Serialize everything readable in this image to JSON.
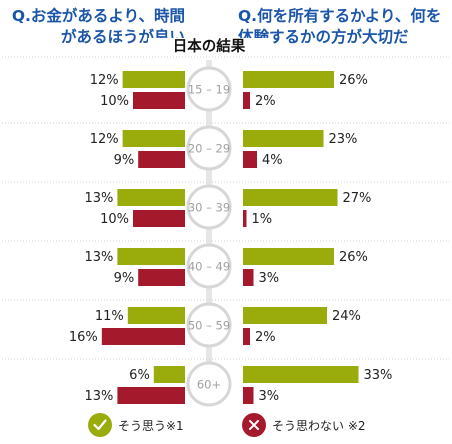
{
  "header": {
    "left_question": "Q.お金があるより、時間\nがあるほうが良い",
    "right_question": "Q.何を所有するかより、何を\n体験するかの方が大切だ",
    "center_title": "日本の結果"
  },
  "legend": {
    "yes_label": "そう思う※1",
    "no_label": "そう思わない ※2"
  },
  "colors": {
    "agree": "#9aab0c",
    "disagree": "#a5192c",
    "question_text": "#1b55a8",
    "age_circle_border": "#d7d7d7",
    "age_text": "#a0a0a0",
    "divider": "#d0d0d0"
  },
  "chart_data": [
    {
      "type": "bar",
      "title": "Q.お金があるより、時間があるほうが良い",
      "categories": [
        "15 – 19",
        "20 – 29",
        "30 – 39",
        "40 – 49",
        "50 – 59",
        "60+"
      ],
      "series": [
        {
          "name": "そう思う※1",
          "values": [
            12,
            12,
            13,
            13,
            11,
            6
          ]
        },
        {
          "name": "そう思わない ※2",
          "values": [
            10,
            9,
            10,
            9,
            16,
            13
          ]
        }
      ],
      "value_unit": "%",
      "orientation": "horizontal",
      "direction": "right-to-left"
    },
    {
      "type": "bar",
      "title": "Q.何を所有するかより、何を体験するかの方が大切だ",
      "categories": [
        "15 – 19",
        "20 – 29",
        "30 – 39",
        "40 – 49",
        "50 – 59",
        "60+"
      ],
      "series": [
        {
          "name": "そう思う※1",
          "values": [
            26,
            23,
            27,
            26,
            24,
            33
          ]
        },
        {
          "name": "そう思わない ※2",
          "values": [
            2,
            4,
            1,
            3,
            2,
            3
          ]
        }
      ],
      "value_unit": "%",
      "orientation": "horizontal",
      "direction": "left-to-right"
    }
  ]
}
